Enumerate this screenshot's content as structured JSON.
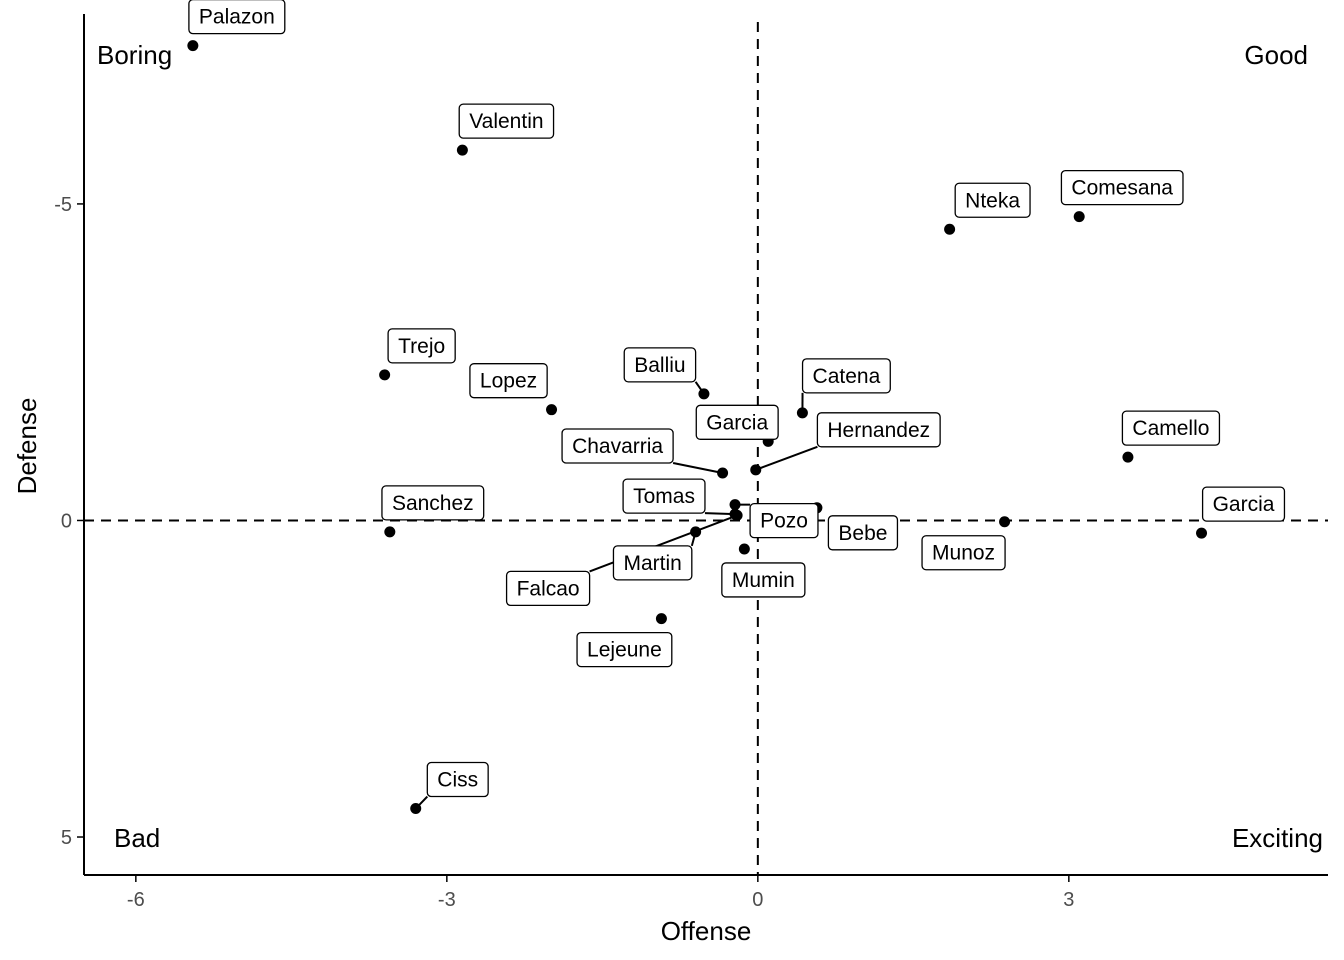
{
  "chart_data": {
    "type": "scatter",
    "xlabel": "Offense",
    "ylabel": "Defense",
    "xlim": [
      -6.5,
      5.5
    ],
    "ylim": [
      -8.0,
      5.6
    ],
    "y_reversed": true,
    "xticks": [
      -6,
      -3,
      0,
      3
    ],
    "yticks": [
      -5,
      0,
      5
    ],
    "reference_lines": {
      "x": 0,
      "y": 0,
      "style": "dashed"
    },
    "grid": false,
    "quadrant_labels": {
      "top_left": "Boring",
      "top_right": "Good",
      "bottom_left": "Bad",
      "bottom_right": "Exciting"
    },
    "points": [
      {
        "name": "Palazon",
        "x": -5.45,
        "y": -7.5
      },
      {
        "name": "Valentin",
        "x": -2.85,
        "y": -5.85
      },
      {
        "name": "Nteka",
        "x": 1.85,
        "y": -4.6
      },
      {
        "name": "Comesana",
        "x": 3.1,
        "y": -4.8
      },
      {
        "name": "Trejo",
        "x": -3.6,
        "y": -2.3
      },
      {
        "name": "Lopez",
        "x": -1.99,
        "y": -1.75
      },
      {
        "name": "Balliu",
        "x": -0.52,
        "y": -2.0
      },
      {
        "name": "Catena",
        "x": 0.43,
        "y": -1.7
      },
      {
        "name": "Garcia",
        "x": 0.1,
        "y": -1.25
      },
      {
        "name": "Hernandez",
        "x": -0.02,
        "y": -0.8
      },
      {
        "name": "Chavarria",
        "x": -0.34,
        "y": -0.75
      },
      {
        "name": "Camello",
        "x": 3.57,
        "y": -1.0
      },
      {
        "name": "Pozo",
        "x": -0.22,
        "y": -0.25
      },
      {
        "name": "Tomas",
        "x": -0.22,
        "y": -0.1
      },
      {
        "name": "Bebe",
        "x": 0.57,
        "y": -0.2
      },
      {
        "name": "Munoz",
        "x": 2.38,
        "y": 0.02
      },
      {
        "name": "Garcia",
        "x": 4.28,
        "y": 0.2
      },
      {
        "name": "Sanchez",
        "x": -3.55,
        "y": 0.18
      },
      {
        "name": "Martin",
        "x": -0.6,
        "y": 0.18
      },
      {
        "name": "Falcao",
        "x": -0.2,
        "y": -0.08
      },
      {
        "name": "Mumin",
        "x": -0.13,
        "y": 0.45
      },
      {
        "name": "Lejeune",
        "x": -0.93,
        "y": 1.55
      },
      {
        "name": "Ciss",
        "x": -3.3,
        "y": 4.55
      }
    ]
  }
}
